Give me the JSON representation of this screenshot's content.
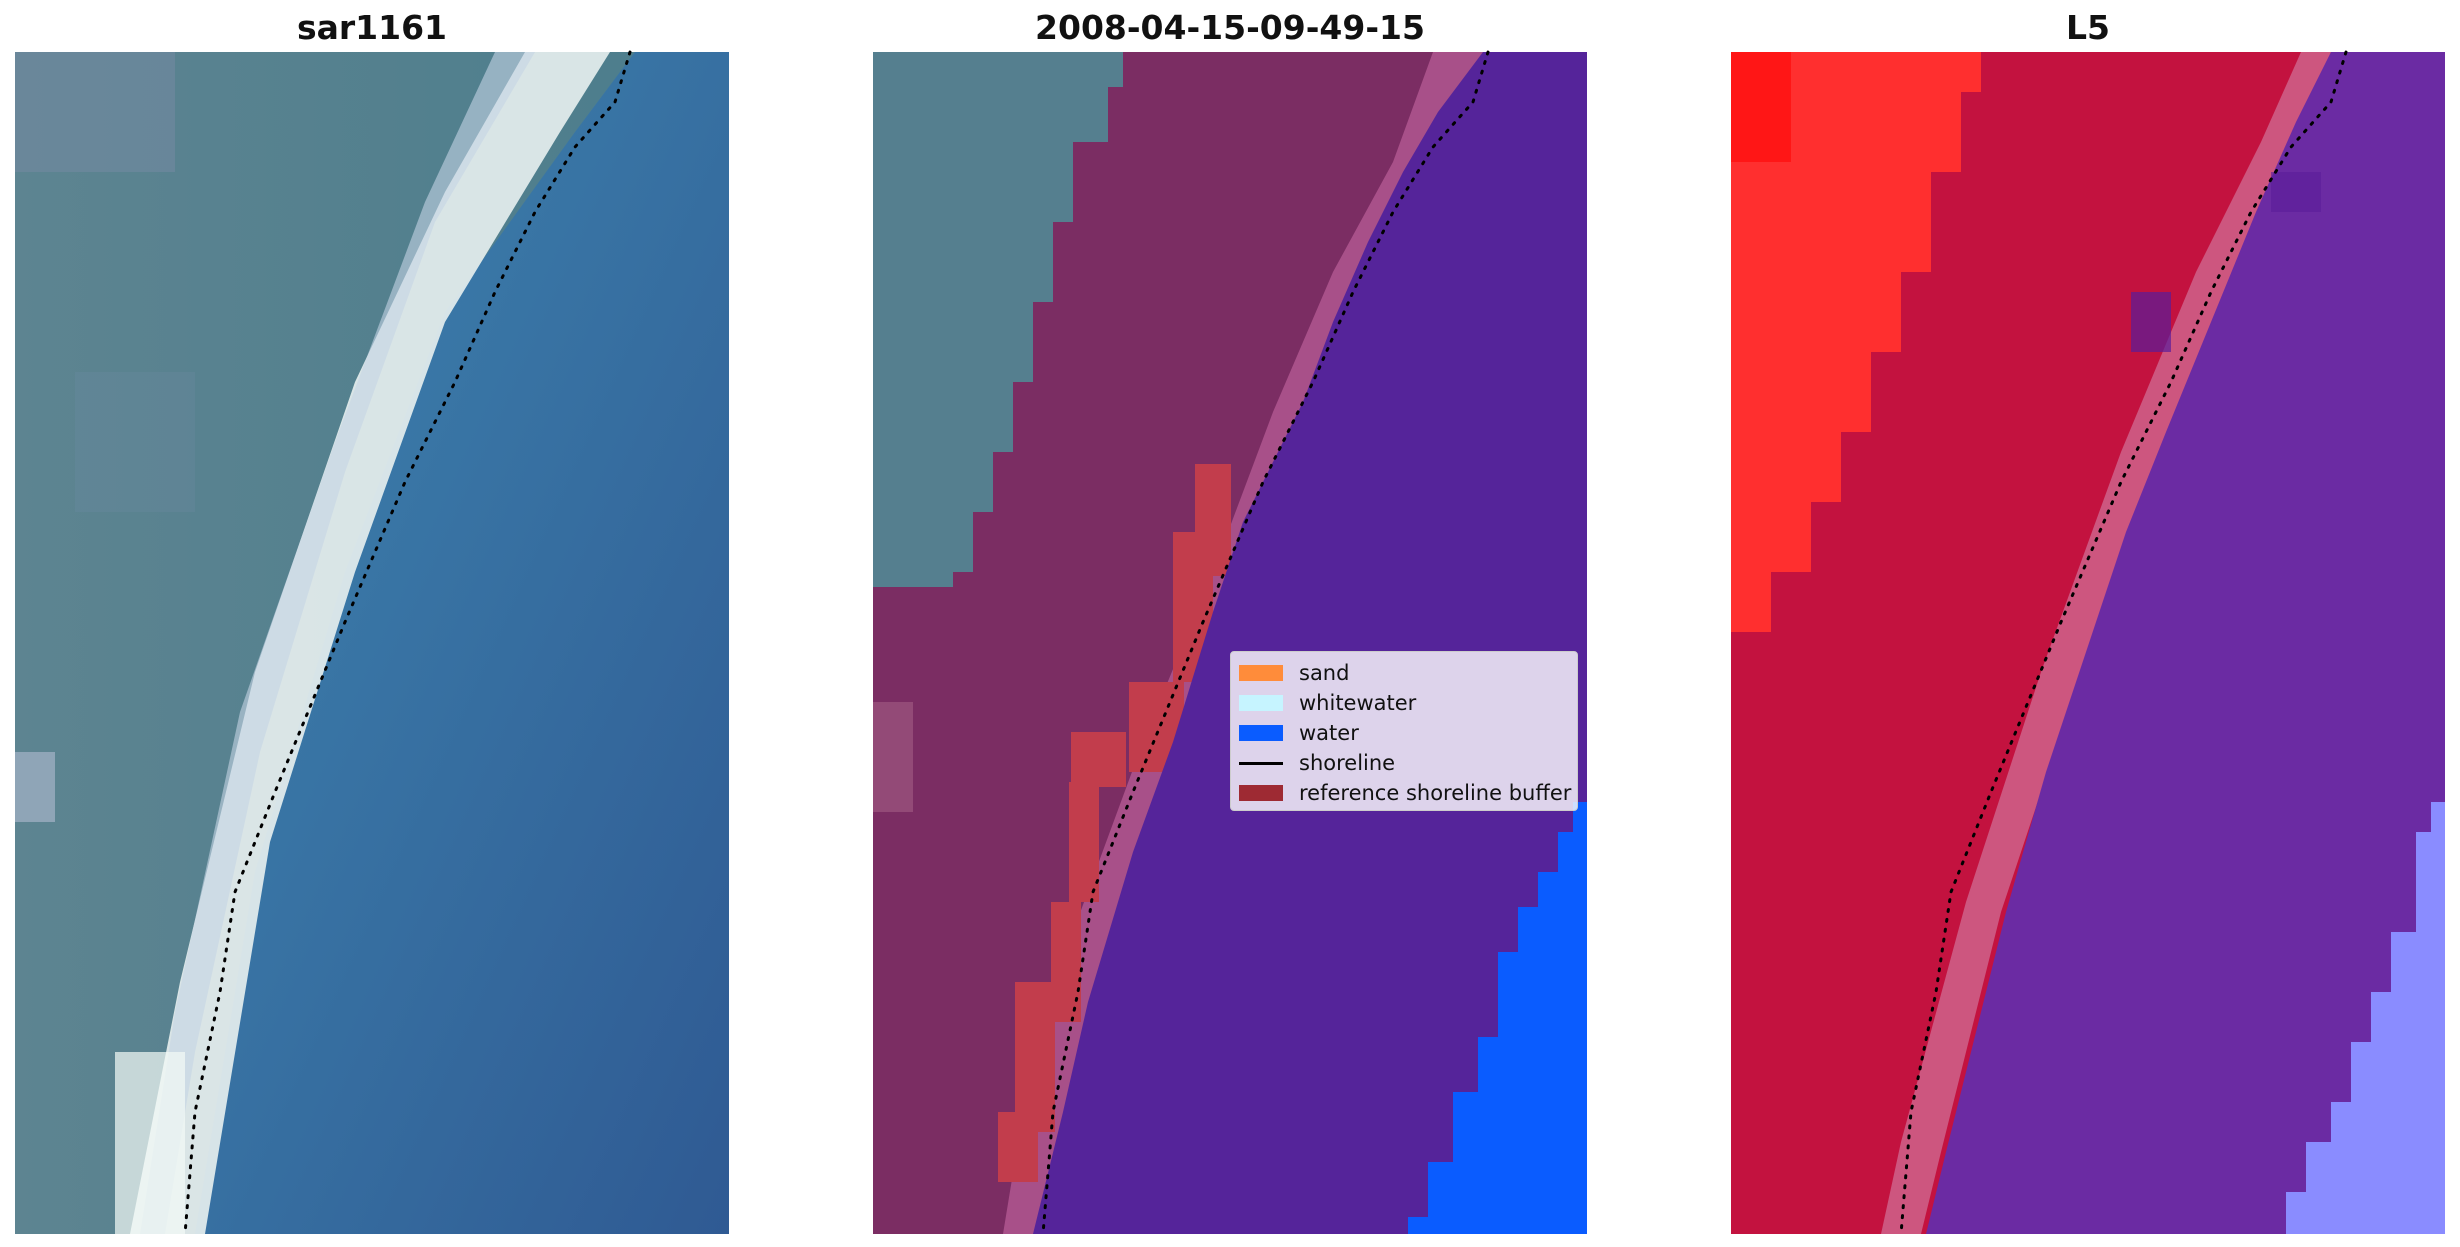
{
  "panels": [
    {
      "title": "sar1161"
    },
    {
      "title": "2008-04-15-09-49-15"
    },
    {
      "title": "L5"
    }
  ],
  "legend": [
    {
      "label": "sand",
      "color": "#ff8c3a"
    },
    {
      "label": "whitewater",
      "color": "#c6f4ff"
    },
    {
      "label": "water",
      "color": "#0a5cff"
    },
    {
      "label": "shoreline",
      "color": "#000000"
    },
    {
      "label": "reference shoreline buffer",
      "color": "#9e2a33"
    }
  ],
  "colors": {
    "land_rgb": "#4e7f90",
    "beach_white": "#eaf2f0",
    "sea_blue": "#3a6fa8",
    "classified_land_overlay": "#7a2d63",
    "classified_water_overlay": "#55249a",
    "mndwi_land": "#c3123f",
    "mndwi_land_bright": "#ff2a2a",
    "mndwi_water": "#6a2aa0",
    "mndwi_water_light": "#8a8cff"
  }
}
